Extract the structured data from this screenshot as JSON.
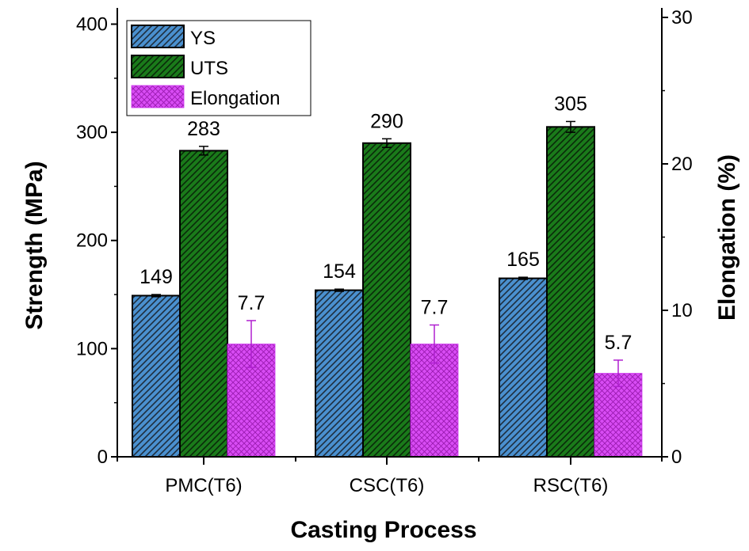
{
  "chart_data": {
    "type": "bar",
    "categories": [
      "PMC(T6)",
      "CSC(T6)",
      "RSC(T6)"
    ],
    "series": [
      {
        "name": "YS",
        "axis": "left",
        "values": [
          149,
          154,
          165
        ],
        "errors": [
          1,
          1,
          1
        ],
        "labels": [
          "149",
          "154",
          "165"
        ],
        "color": "#4a90cf",
        "pattern": "dense diagonal hatch"
      },
      {
        "name": "UTS",
        "axis": "left",
        "values": [
          283,
          290,
          305
        ],
        "errors": [
          4,
          4,
          5
        ],
        "labels": [
          "283",
          "290",
          "305"
        ],
        "color": "#1a7a1a",
        "pattern": "dense diagonal hatch"
      },
      {
        "name": "Elongation",
        "axis": "right",
        "values": [
          7.7,
          7.7,
          5.7
        ],
        "errors": [
          1.6,
          1.3,
          0.9
        ],
        "labels": [
          "7.7",
          "7.7",
          "5.7"
        ],
        "color": "#cc33ee",
        "pattern": "crosshatch"
      }
    ],
    "xlabel": "Casting Process",
    "ylabel": "Strength (MPa)",
    "ylabel_right": "Elongation (%)",
    "ylim": [
      0,
      415
    ],
    "yticks": [
      0,
      100,
      200,
      300,
      400
    ],
    "ylim_right": [
      0,
      30
    ],
    "yticks_right": [
      0,
      10,
      20,
      30
    ],
    "legend_placement": "top-left",
    "grid": false
  }
}
